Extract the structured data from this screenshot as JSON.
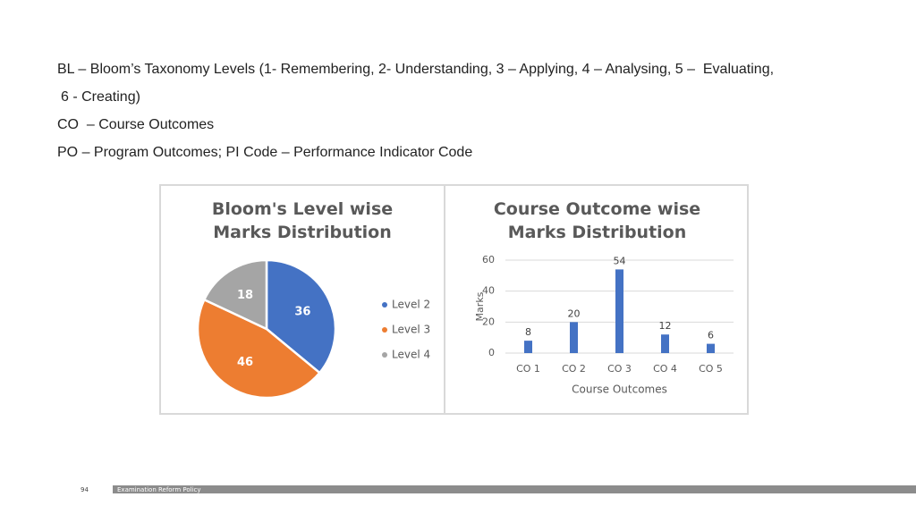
{
  "text": [
    "BL – Bloom’s Taxonomy Levels (1- Remembering, 2- Understanding, 3 – Applying, 4 – Analysing, 5 –  Evaluating,",
    "6 - Creating)",
    "CO  – Course Outcomes",
    "PO – Program Outcomes; PI Code – Performance Indicator Code"
  ],
  "chart_data": [
    {
      "type": "pie",
      "title": "Bloom's Level wise Marks Distribution",
      "categories": [
        "Level 2",
        "Level 3",
        "Level 4"
      ],
      "values": [
        36,
        46,
        18
      ],
      "colors": [
        "#4472c4",
        "#ed7d31",
        "#a5a5a5"
      ],
      "legend": "right"
    },
    {
      "type": "bar",
      "title": "Course Outcome wise Marks Distribution",
      "x_label": "Course Outcomes",
      "y_label": "Marks",
      "categories": [
        "CO 1",
        "CO 2",
        "CO 3",
        "CO 4",
        "CO 5"
      ],
      "values": [
        8,
        20,
        54,
        12,
        6
      ],
      "color": "#4472c4",
      "ylim": [
        0,
        60
      ],
      "yticks": [
        0,
        20,
        40,
        60
      ],
      "grid": true
    }
  ],
  "footer": {
    "page": "94",
    "text": "Examination Reform Policy"
  }
}
